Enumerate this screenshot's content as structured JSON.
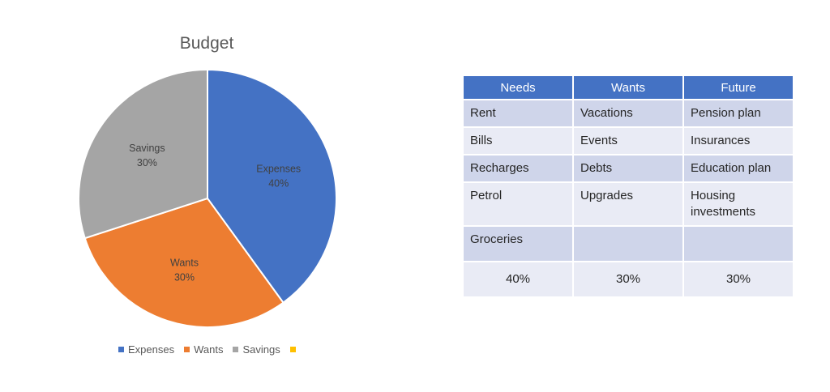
{
  "chart_data": {
    "type": "pie",
    "title": "Budget",
    "categories": [
      "Expenses",
      "Wants",
      "Savings",
      ""
    ],
    "values": [
      40,
      30,
      30,
      0
    ],
    "labels": [
      {
        "name": "Expenses",
        "value": "40%"
      },
      {
        "name": "Wants",
        "value": "30%"
      },
      {
        "name": "Savings",
        "value": "30%"
      }
    ],
    "colors": [
      "#4472c4",
      "#ed7d31",
      "#a5a5a5",
      "#ffc000"
    ],
    "legend_position": "bottom"
  },
  "legend": {
    "items": [
      {
        "label": "Expenses",
        "color": "#4472c4"
      },
      {
        "label": "Wants",
        "color": "#ed7d31"
      },
      {
        "label": "Savings",
        "color": "#a5a5a5"
      },
      {
        "label": "",
        "color": "#ffc000"
      }
    ]
  },
  "table": {
    "headers": [
      "Needs",
      "Wants",
      "Future"
    ],
    "rows": [
      [
        "Rent",
        "Vacations",
        "Pension plan"
      ],
      [
        "Bills",
        "Events",
        "Insurances"
      ],
      [
        "Recharges",
        "Debts",
        "Education plan"
      ],
      [
        "Petrol",
        "Upgrades",
        "Housing investments"
      ],
      [
        "Groceries",
        "",
        ""
      ]
    ],
    "totals": [
      "40%",
      "30%",
      "30%"
    ]
  }
}
